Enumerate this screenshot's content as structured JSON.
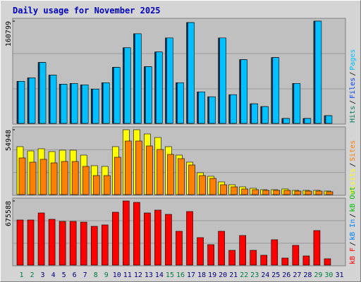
{
  "chart_data": [
    {
      "type": "bar",
      "title": "Daily usage for November 2025",
      "ylim": [
        0,
        160799
      ],
      "yticks": [
        160799
      ],
      "legend_separator": "/",
      "series": [
        {
          "name": "Hits",
          "color": "#00805c",
          "values": [
            66084,
            71591,
            95822,
            75997,
            61678,
            62780,
            60577,
            53969,
            63881,
            88112,
            118951,
            140979,
            89213,
            112343,
            134371,
            63881,
            158600,
            49563,
            41853,
            134371,
            45157,
            100227,
            30839,
            26434,
            103532,
            7710,
            62780,
            7710,
            160799,
            12115,
            null
          ]
        },
        {
          "name": "Files",
          "color": "#0040ff",
          "values": [
            66084,
            71591,
            95822,
            75997,
            61678,
            62780,
            60577,
            53969,
            63881,
            88112,
            118951,
            140979,
            89213,
            112343,
            134371,
            63881,
            158600,
            49563,
            41853,
            134371,
            45157,
            100227,
            30839,
            26434,
            103532,
            7710,
            62780,
            7710,
            160799,
            12115,
            null
          ]
        },
        {
          "name": "Pages",
          "color": "#00c0ff",
          "values": [
            66084,
            71591,
            95822,
            75997,
            61678,
            62780,
            60577,
            53969,
            63881,
            88112,
            118951,
            140979,
            89213,
            112343,
            134371,
            63881,
            158600,
            49563,
            41853,
            134371,
            45157,
            100227,
            30839,
            26434,
            103532,
            7710,
            62780,
            7710,
            160799,
            12115,
            null
          ]
        }
      ]
    },
    {
      "type": "bar",
      "ylim": [
        0,
        54948
      ],
      "yticks": [
        54948
      ],
      "legend_separator": "/",
      "series": [
        {
          "name": "Visits",
          "color": "#ffff00",
          "values": [
            40616,
            37030,
            38825,
            36433,
            37628,
            37628,
            33448,
            24489,
            23892,
            40616,
            54948,
            54948,
            51366,
            48379,
            40616,
            33448,
            27476,
            18516,
            15530,
            10751,
            8362,
            6570,
            5376,
            4181,
            4181,
            4778,
            3584,
            3584,
            3584,
            2986,
            null
          ]
        },
        {
          "name": "Sites",
          "color": "#ff8000",
          "values": [
            31060,
            27476,
            29865,
            26879,
            28073,
            28073,
            23892,
            16127,
            16127,
            31657,
            45395,
            45395,
            41214,
            38228,
            34046,
            30462,
            25087,
            16127,
            13738,
            8362,
            6570,
            4778,
            4181,
            3584,
            3584,
            3584,
            2986,
            2986,
            2986,
            2389,
            null
          ]
        }
      ]
    },
    {
      "type": "bar",
      "ylim": [
        0,
        675588
      ],
      "yticks": [
        675588
      ],
      "legend_separator": "/",
      "categories": [
        "1",
        "2",
        "3",
        "4",
        "5",
        "6",
        "7",
        "8",
        "9",
        "10",
        "11",
        "12",
        "13",
        "14",
        "15",
        "16",
        "17",
        "18",
        "19",
        "20",
        "21",
        "22",
        "23",
        "24",
        "25",
        "26",
        "27",
        "28",
        "29",
        "30",
        "31"
      ],
      "category_colors": [
        "#008040",
        "#008040",
        "#000080",
        "#000080",
        "#000080",
        "#000080",
        "#000080",
        "#008040",
        "#008040",
        "#000080",
        "#000080",
        "#000080",
        "#000080",
        "#000080",
        "#008040",
        "#008040",
        "#000080",
        "#000080",
        "#000080",
        "#000080",
        "#000080",
        "#008040",
        "#008040",
        "#000080",
        "#000080",
        "#000080",
        "#000080",
        "#000080",
        "#008040",
        "#008040",
        "#000080"
      ],
      "series": [
        {
          "name": "kB F",
          "color": "#ff0000",
          "values": [
            475136,
            475136,
            549376,
            482560,
            460288,
            460288,
            452864,
            408320,
            423168,
            556800,
            675588,
            660736,
            549376,
            579072,
            534528,
            356352,
            564224,
            289536,
            215296,
            356352,
            155904,
            311808,
            155904,
            103936,
            267264,
            74240,
            207872,
            96512,
            363776,
            66816,
            null
          ]
        },
        {
          "name": "kB In",
          "color": "#0080ff",
          "values": [
            0,
            0,
            0,
            0,
            0,
            0,
            0,
            0,
            0,
            0,
            0,
            0,
            0,
            0,
            0,
            0,
            0,
            0,
            0,
            0,
            0,
            0,
            0,
            0,
            0,
            0,
            0,
            0,
            0,
            0,
            null
          ]
        },
        {
          "name": "kB Out",
          "color": "#00c000",
          "values": [
            0,
            0,
            0,
            0,
            0,
            0,
            0,
            0,
            0,
            0,
            0,
            0,
            0,
            0,
            0,
            0,
            0,
            0,
            0,
            0,
            0,
            0,
            0,
            0,
            0,
            0,
            0,
            0,
            0,
            0,
            null
          ]
        }
      ]
    }
  ]
}
